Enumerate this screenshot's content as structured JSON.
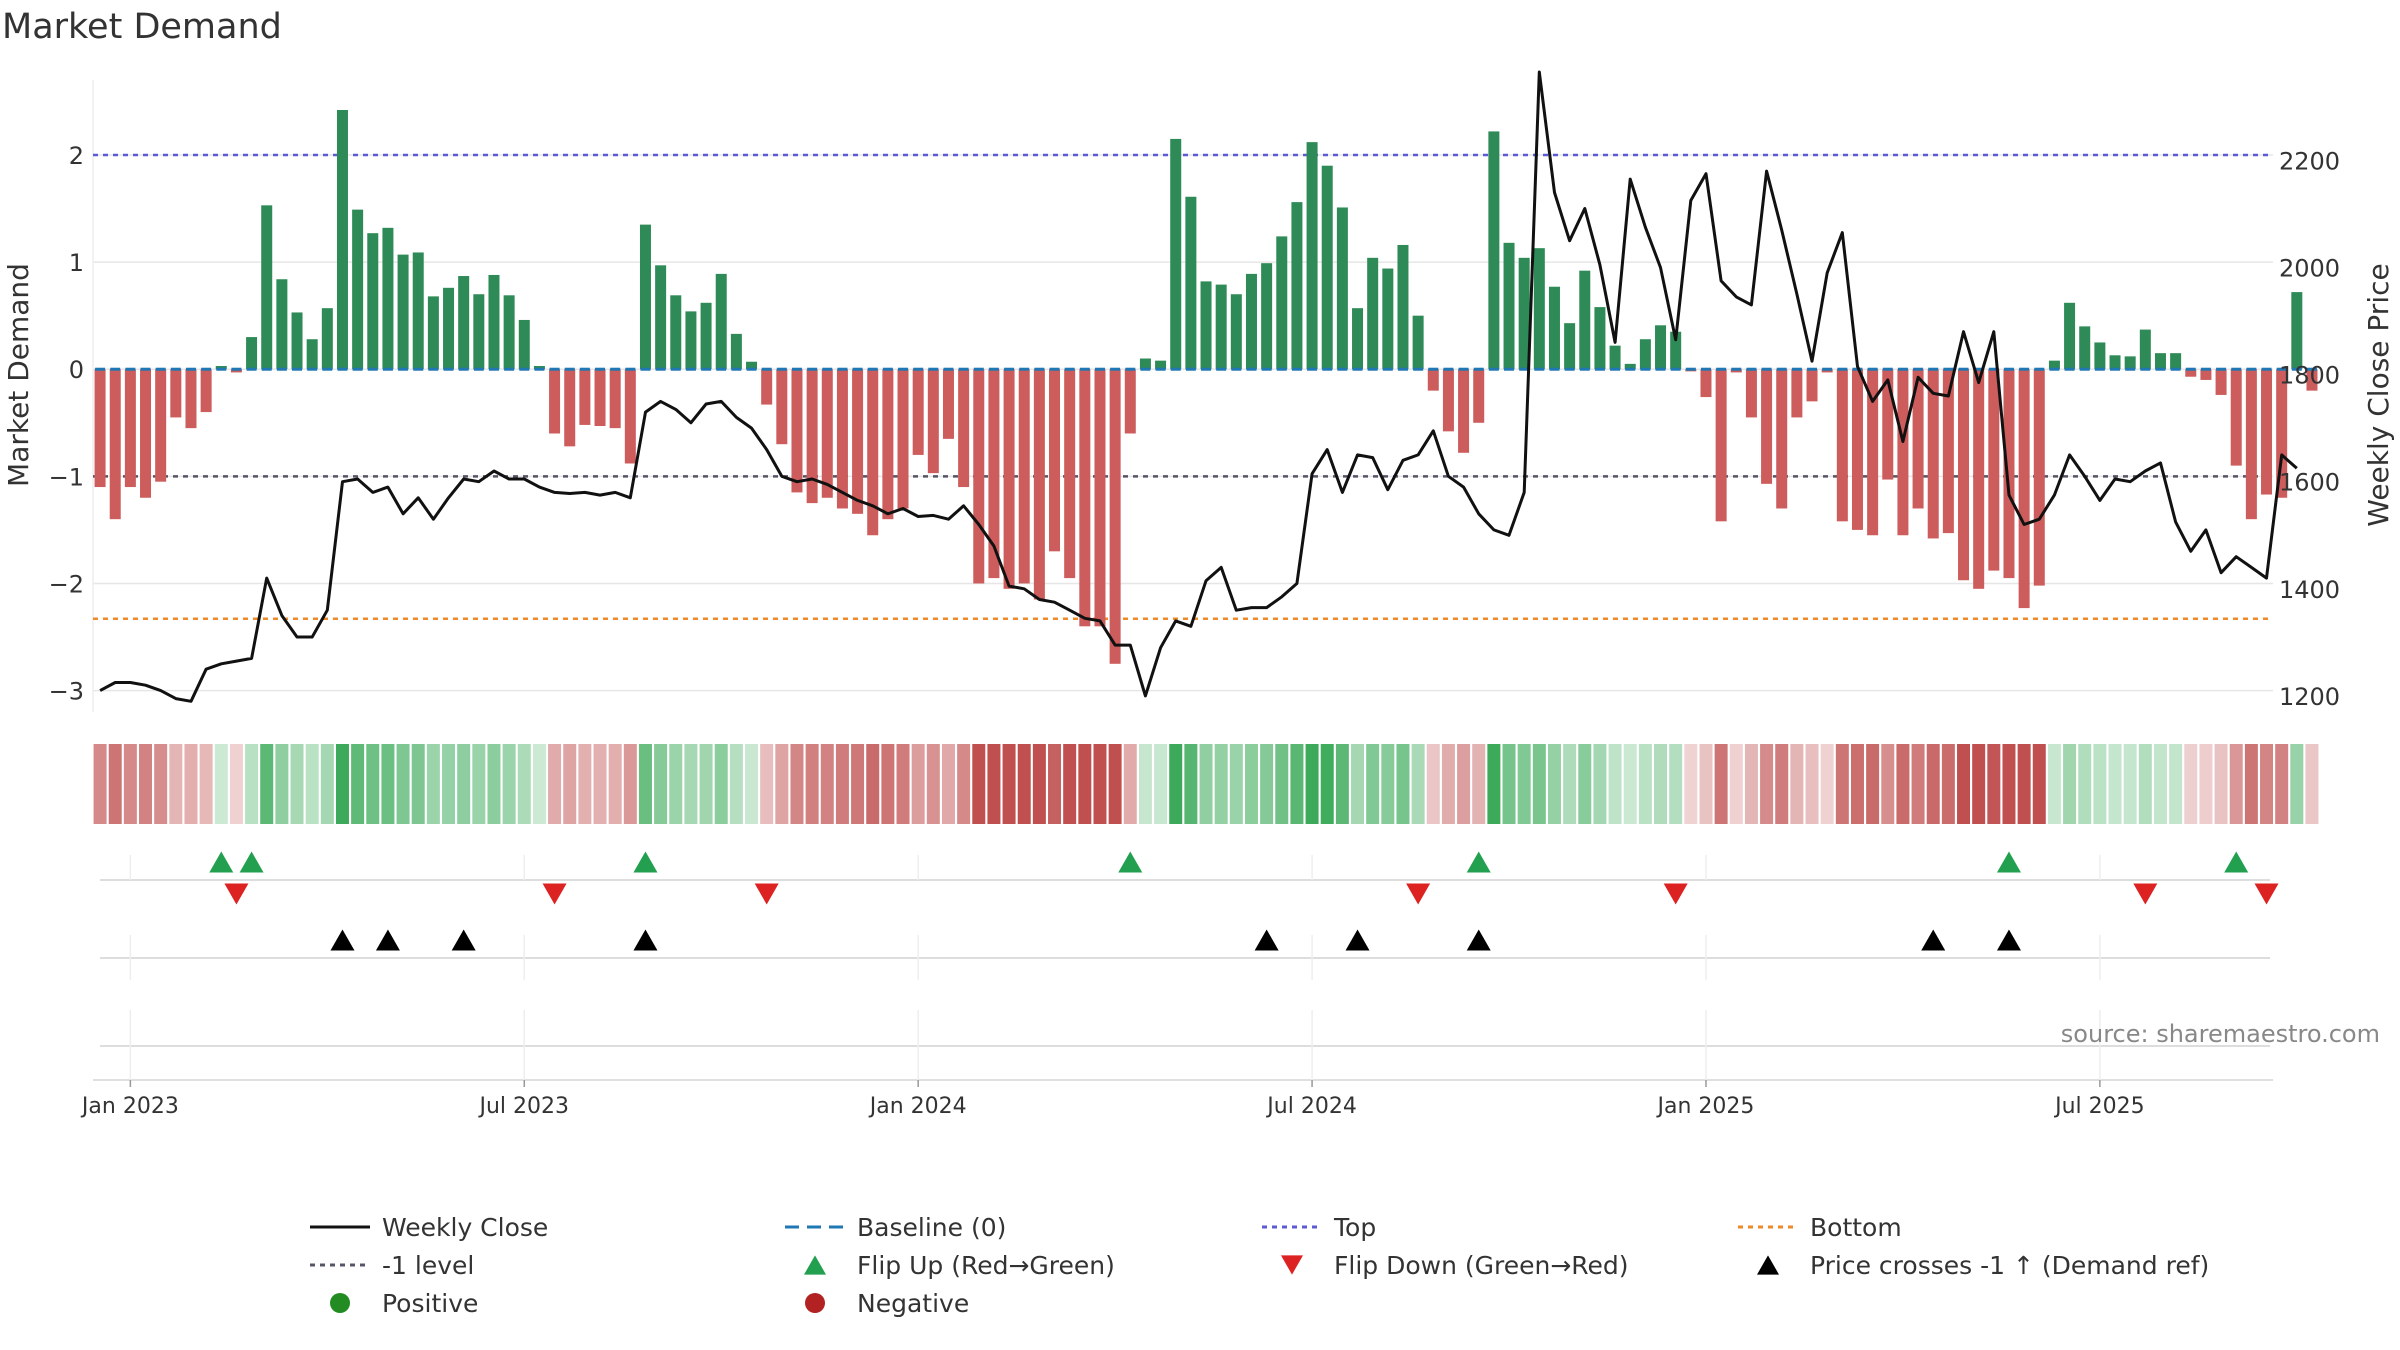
{
  "chart_data": {
    "type": "bar",
    "title": "Market Demand",
    "ylabel_left": "Market Demand",
    "ylabel_right": "Weekly Close Price",
    "ylim_left": [
      -3.2,
      2.7
    ],
    "ylim_right": [
      1170,
      2350
    ],
    "yticks_left": [
      "2",
      "1",
      "0",
      "−1",
      "−2",
      "−3"
    ],
    "yticks_left_values": [
      2,
      1,
      0,
      -1,
      -2,
      -3
    ],
    "yticks_right": [
      "2200",
      "2000",
      "1800",
      "1600",
      "1400",
      "1200"
    ],
    "yticks_right_values": [
      2200,
      2000,
      1800,
      1600,
      1400,
      1200
    ],
    "x_tick_labels": [
      "Jan 2023",
      "Jul 2023",
      "Jan 2024",
      "Jul 2024",
      "Jan 2025",
      "Jul 2025"
    ],
    "x_tick_weeks": [
      2,
      28,
      54,
      80,
      106,
      132
    ],
    "x_range_weeks": [
      -0.5,
      143.5
    ],
    "reference_lines": {
      "top": 2.0,
      "minus_one": -1.0,
      "bottom": -2.33,
      "baseline": 0
    },
    "demand": [
      -1.1,
      -1.4,
      -1.1,
      -1.2,
      -1.05,
      -0.45,
      -0.55,
      -0.4,
      0.03,
      -0.03,
      0.3,
      1.53,
      0.84,
      0.53,
      0.28,
      0.57,
      2.42,
      1.49,
      1.27,
      1.32,
      1.07,
      1.09,
      0.68,
      0.76,
      0.87,
      0.7,
      0.88,
      0.69,
      0.46,
      0.03,
      -0.6,
      -0.72,
      -0.52,
      -0.53,
      -0.55,
      -0.88,
      1.35,
      0.97,
      0.69,
      0.54,
      0.62,
      0.89,
      0.33,
      0.07,
      -0.33,
      -0.7,
      -1.15,
      -1.25,
      -1.2,
      -1.3,
      -1.35,
      -1.55,
      -1.4,
      -1.3,
      -0.8,
      -0.97,
      -0.65,
      -1.1,
      -2.0,
      -1.95,
      -2.05,
      -2.0,
      -2.15,
      -1.7,
      -1.95,
      -2.4,
      -2.4,
      -2.75,
      -0.6,
      0.1,
      0.08,
      2.15,
      1.61,
      0.82,
      0.79,
      0.7,
      0.89,
      0.99,
      1.24,
      1.56,
      2.12,
      1.9,
      1.51,
      0.57,
      1.04,
      0.94,
      1.16,
      0.5,
      -0.2,
      -0.58,
      -0.78,
      -0.5,
      2.22,
      1.18,
      1.04,
      1.13,
      0.77,
      0.43,
      0.92,
      0.58,
      0.22,
      0.05,
      0.28,
      0.41,
      0.35,
      -0.02,
      -0.26,
      -1.42,
      -0.03,
      -0.45,
      -1.07,
      -1.3,
      -0.45,
      -0.3,
      -0.03,
      -1.42,
      -1.5,
      -1.55,
      -1.03,
      -1.55,
      -1.3,
      -1.58,
      -1.53,
      -1.97,
      -2.05,
      -1.88,
      -1.95,
      -2.23,
      -2.02,
      0.08,
      0.62,
      0.4,
      0.25,
      0.13,
      0.12,
      0.37,
      0.15,
      0.15,
      -0.07,
      -0.1,
      -0.24,
      -0.9,
      -1.4,
      -1.17,
      -1.2,
      0.72,
      -0.2
    ],
    "weekly_close": [
      1210,
      1225,
      1225,
      1220,
      1210,
      1195,
      1190,
      1250,
      1260,
      1265,
      1270,
      1420,
      1350,
      1310,
      1310,
      1360,
      1600,
      1605,
      1580,
      1590,
      1540,
      1570,
      1530,
      1570,
      1605,
      1600,
      1620,
      1605,
      1605,
      1590,
      1580,
      1578,
      1580,
      1575,
      1580,
      1570,
      1730,
      1750,
      1735,
      1710,
      1745,
      1750,
      1720,
      1700,
      1660,
      1610,
      1600,
      1605,
      1595,
      1580,
      1565,
      1555,
      1540,
      1550,
      1535,
      1537,
      1530,
      1555,
      1520,
      1480,
      1405,
      1400,
      1380,
      1375,
      1360,
      1345,
      1340,
      1295,
      1295,
      1200,
      1290,
      1340,
      1330,
      1415,
      1440,
      1360,
      1365,
      1365,
      1385,
      1410,
      1615,
      1660,
      1580,
      1650,
      1645,
      1585,
      1640,
      1650,
      1695,
      1610,
      1590,
      1540,
      1510,
      1500,
      1580,
      2365,
      2140,
      2050,
      2110,
      2005,
      1860,
      2165,
      2075,
      2000,
      1865,
      2125,
      2175,
      1975,
      1945,
      1930,
      2180,
      2070,
      1950,
      1825,
      1990,
      2065,
      1815,
      1750,
      1790,
      1675,
      1795,
      1765,
      1760,
      1880,
      1785,
      1880,
      1575,
      1520,
      1530,
      1575,
      1650,
      1610,
      1565,
      1605,
      1600,
      1620,
      1635,
      1525,
      1470,
      1510,
      1430,
      1460,
      1440,
      1420,
      1650,
      1625
    ],
    "flip_up_weeks": [
      8,
      10,
      36,
      68,
      91,
      126,
      141
    ],
    "flip_down_weeks": [
      9,
      30,
      44,
      87,
      104,
      135,
      143
    ],
    "price_cross_weeks": [
      16,
      19,
      24,
      36,
      77,
      83,
      91,
      121,
      126
    ],
    "source": "source: sharemaestro.com",
    "legend": [
      "Weekly Close",
      "Baseline (0)",
      "Top",
      "Bottom",
      "-1 level",
      "Flip Up (Red→Green)",
      "Flip Down (Green→Red)",
      "Price crosses -1 ↑ (Demand ref)",
      "Positive",
      "Negative"
    ],
    "colors": {
      "positive": "#2e8b57",
      "negative": "#cd5c5c",
      "close": "#111111",
      "baseline": "#1f77b4",
      "top": "#5b5bd6",
      "bottom": "#ee8a2a",
      "minus_one": "#555566",
      "flip_up": "#22a050",
      "flip_down": "#dd2222",
      "cross": "#000000",
      "grid": "#e6e6e6",
      "legend_positive": "#228b22",
      "legend_negative": "#b22222"
    }
  }
}
